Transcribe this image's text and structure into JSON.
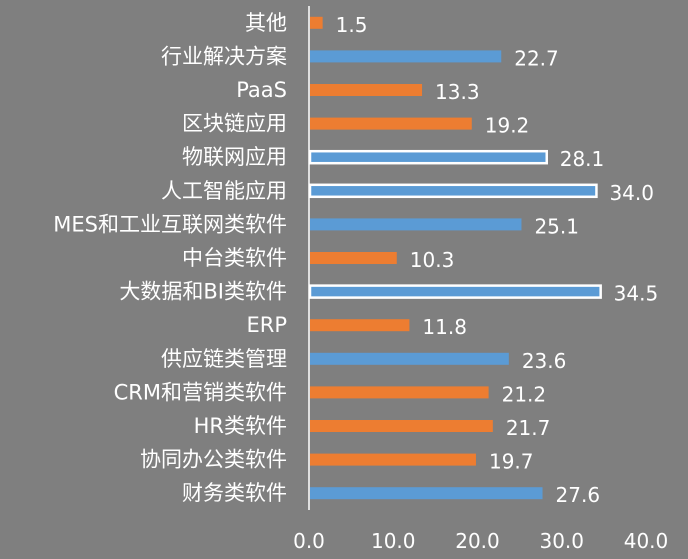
{
  "chart_data": {
    "type": "bar",
    "orientation": "horizontal",
    "categories": [
      "其他",
      "行业解决方案",
      "PaaS",
      "区块链应用",
      "物联网应用",
      "人工智能应用",
      "MES和工业互联网类软件",
      "中台类软件",
      "大数据和BI类软件",
      "ERP",
      "供应链类管理",
      "CRM和营销类软件",
      "HR类软件",
      "协同办公类软件",
      "财务类软件"
    ],
    "values": [
      1.5,
      22.7,
      13.3,
      19.2,
      28.1,
      34.0,
      25.1,
      10.3,
      34.5,
      11.8,
      23.6,
      21.2,
      21.7,
      19.7,
      27.6
    ],
    "value_labels": [
      "1.5",
      "22.7",
      "13.3",
      "19.2",
      "28.1",
      "34.0",
      "25.1",
      "10.3",
      "34.5",
      "11.8",
      "23.6",
      "21.2",
      "21.7",
      "19.7",
      "27.6"
    ],
    "bar_colors": [
      "#ed7d31",
      "#5b9bd5",
      "#ed7d31",
      "#ed7d31",
      "#5b9bd5",
      "#5b9bd5",
      "#5b9bd5",
      "#ed7d31",
      "#5b9bd5",
      "#ed7d31",
      "#5b9bd5",
      "#ed7d31",
      "#ed7d31",
      "#ed7d31",
      "#5b9bd5"
    ],
    "highlighted": [
      false,
      false,
      false,
      false,
      true,
      true,
      false,
      false,
      true,
      false,
      false,
      false,
      false,
      false,
      false
    ],
    "xlim": [
      0,
      40
    ],
    "xticks": [
      0,
      10,
      20,
      30,
      40
    ],
    "xtick_labels": [
      "0.0",
      "10.0",
      "20.0",
      "30.0",
      "40.0"
    ],
    "grid": false,
    "legend": "none",
    "title": "",
    "xlabel": "",
    "ylabel": ""
  }
}
